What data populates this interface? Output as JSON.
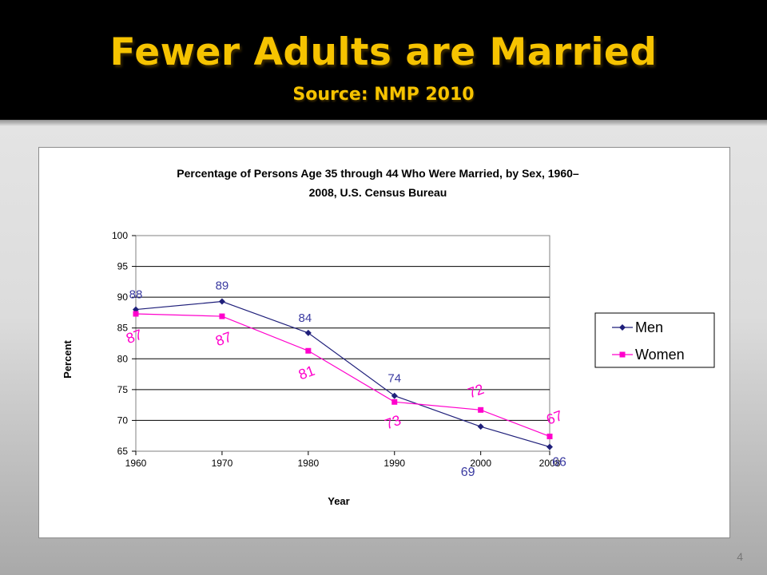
{
  "slide": {
    "title": "Fewer Adults are Married",
    "subtitle": "Source: NMP 2010",
    "page_number": "4"
  },
  "colors": {
    "title_text": "#f6c300",
    "men": "#1f1f7a",
    "women": "#ff00cc",
    "men_label": "#3a3aa0"
  },
  "chart_data": {
    "type": "line",
    "title": "Percentage of Persons Age 35 through 44 Who Were Married, by Sex, 1960–2008, U.S. Census Bureau",
    "title_lines": [
      "Percentage of Persons Age 35 through 44 Who Were Married, by Sex, 1960–",
      "2008, U.S. Census Bureau"
    ],
    "xlabel": "Year",
    "ylabel": "Percent",
    "x": [
      1960,
      1970,
      1980,
      1990,
      2000,
      2008
    ],
    "x_ticks": [
      "1960",
      "1970",
      "1980",
      "1990",
      "2000",
      "2008"
    ],
    "y_ticks": [
      "65",
      "70",
      "75",
      "80",
      "85",
      "90",
      "95",
      "100"
    ],
    "ylim": [
      65,
      100
    ],
    "grid": "horizontal",
    "legend_position": "right",
    "series": [
      {
        "name": "Men",
        "values": [
          88,
          89.3,
          84.2,
          74,
          69,
          65.7
        ],
        "labels": [
          "88",
          "89",
          "84",
          "74",
          "69",
          "66"
        ],
        "marker": "diamond"
      },
      {
        "name": "Women",
        "values": [
          87.3,
          86.9,
          81.3,
          73,
          71.7,
          67.4
        ],
        "labels": [
          "87",
          "87",
          "81",
          "73",
          "72",
          "67"
        ],
        "marker": "square"
      }
    ]
  }
}
